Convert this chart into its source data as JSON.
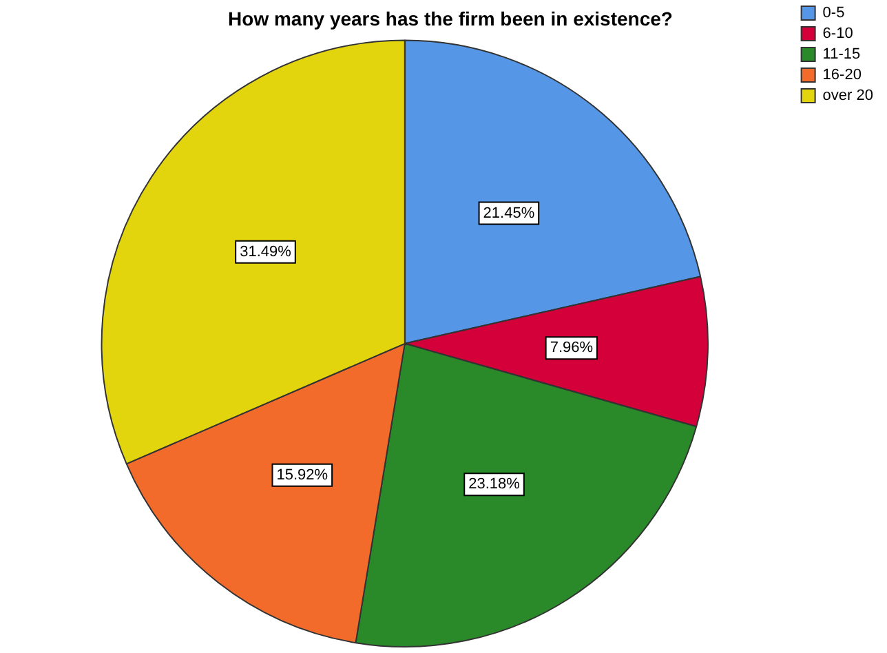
{
  "chart_data": {
    "type": "pie",
    "title": "How many years has the firm been in existence?",
    "categories": [
      "0-5",
      "6-10",
      "11-15",
      "16-20",
      "over 20"
    ],
    "values": [
      21.45,
      7.96,
      23.18,
      15.92,
      31.49
    ],
    "colors": [
      "#5596e6",
      "#d3003a",
      "#2a8a2a",
      "#f26b2a",
      "#e3d50d"
    ],
    "value_labels": [
      "21.45%",
      "7.96%",
      "23.18%",
      "15.92%",
      "31.49%"
    ],
    "legend": "top right"
  }
}
